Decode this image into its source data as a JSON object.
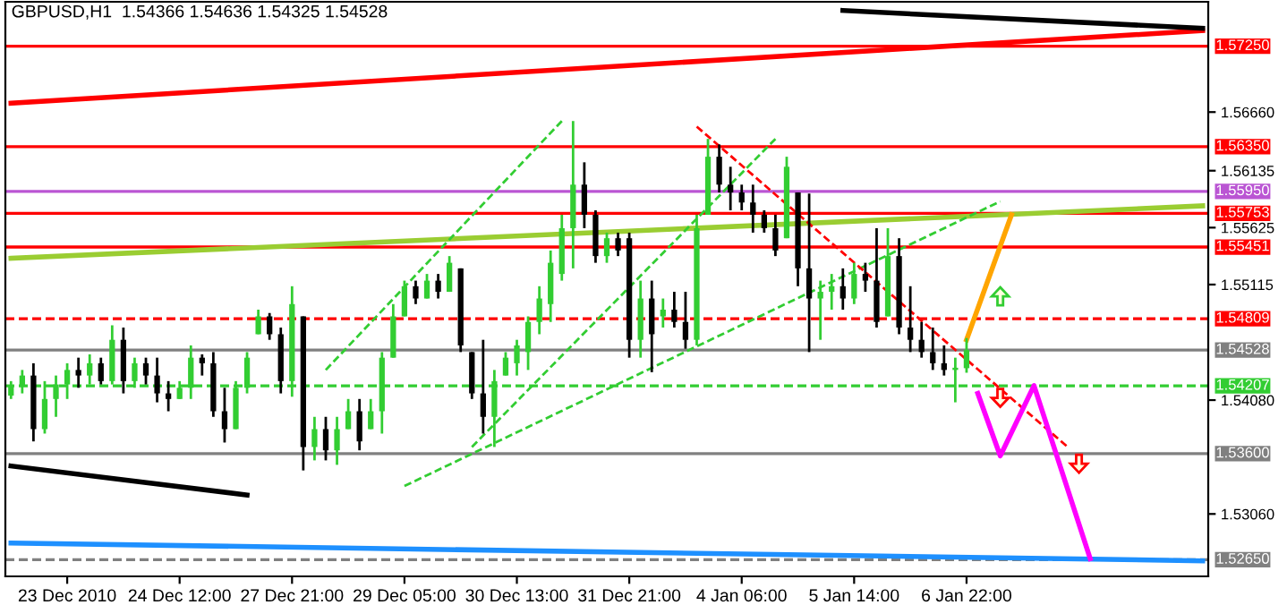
{
  "chart_data": {
    "type": "candlestick",
    "title": "GBPUSD,H1  1.54366 1.54636 1.54325 1.54528",
    "categories": [
      null,
      null,
      null,
      null,
      null,
      "23 Dec 2010",
      null,
      null,
      null,
      null,
      null,
      null,
      null,
      null,
      null,
      "24 Dec 12:00",
      null,
      null,
      null,
      null,
      null,
      null,
      null,
      null,
      null,
      "27 Dec 21:00",
      null,
      null,
      null,
      null,
      null,
      null,
      null,
      null,
      null,
      "29 Dec 05:00",
      null,
      null,
      null,
      null,
      null,
      null,
      null,
      null,
      null,
      "30 Dec 13:00",
      null,
      null,
      null,
      null,
      null,
      null,
      null,
      null,
      null,
      "31 Dec 21:00",
      null,
      null,
      null,
      null,
      null,
      null,
      null,
      null,
      null,
      "4 Jan 06:00",
      null,
      null,
      null,
      null,
      null,
      null,
      null,
      null,
      null,
      "5 Jan 14:00",
      null,
      null,
      null,
      null,
      null,
      null,
      null,
      null,
      null,
      "6 Jan 22:00",
      null,
      null,
      null,
      null,
      null,
      null,
      null,
      null,
      null,
      null,
      null,
      null,
      null,
      null,
      null,
      null,
      null,
      null,
      null,
      null,
      null
    ],
    "ohlc": [
      [
        1.5412,
        1.5425,
        1.5409,
        1.542
      ],
      [
        1.542,
        1.5435,
        1.5414,
        1.543
      ],
      [
        1.543,
        1.5441,
        1.5371,
        1.5382
      ],
      [
        1.5382,
        1.5425,
        1.5378,
        1.5409
      ],
      [
        1.5409,
        1.543,
        1.5393,
        1.5422
      ],
      [
        1.5422,
        1.5441,
        1.5409,
        1.5435
      ],
      [
        1.5435,
        1.5446,
        1.5419,
        1.543
      ],
      [
        1.543,
        1.5449,
        1.5422,
        1.5441
      ],
      [
        1.5441,
        1.5446,
        1.5422,
        1.5425
      ],
      [
        1.5425,
        1.5475,
        1.5422,
        1.5462
      ],
      [
        1.5462,
        1.5473,
        1.5414,
        1.5425
      ],
      [
        1.5425,
        1.5446,
        1.5419,
        1.5441
      ],
      [
        1.5441,
        1.5446,
        1.5422,
        1.543
      ],
      [
        1.543,
        1.5446,
        1.5406,
        1.5414
      ],
      [
        1.5414,
        1.5425,
        1.5398,
        1.5409
      ],
      [
        1.5409,
        1.5425,
        1.5409,
        1.5419
      ],
      [
        1.5419,
        1.5457,
        1.5409,
        1.5446
      ],
      [
        1.5446,
        1.5449,
        1.543,
        1.5441
      ],
      [
        1.5441,
        1.5451,
        1.5393,
        1.5398
      ],
      [
        1.5398,
        1.5419,
        1.537,
        1.5382
      ],
      [
        1.5382,
        1.5425,
        1.5382,
        1.5419
      ],
      [
        1.5419,
        1.5451,
        1.5414,
        1.5446
      ],
      [
        1.5467,
        1.5489,
        1.5467,
        1.5483
      ],
      [
        1.5483,
        1.5486,
        1.5462,
        1.5467
      ],
      [
        1.5467,
        1.5473,
        1.5414,
        1.5425
      ],
      [
        1.5425,
        1.551,
        1.5411,
        1.5494
      ],
      [
        1.5483,
        1.5483,
        1.5345,
        1.5366
      ],
      [
        1.5366,
        1.5393,
        1.5354,
        1.5382
      ],
      [
        1.5382,
        1.5393,
        1.5354,
        1.5363
      ],
      [
        1.5363,
        1.5393,
        1.535,
        1.5382
      ],
      [
        1.5382,
        1.5409,
        1.5382,
        1.5398
      ],
      [
        1.5398,
        1.5409,
        1.5363,
        1.5371
      ],
      [
        1.5382,
        1.5409,
        1.5382,
        1.5398
      ],
      [
        1.5398,
        1.5451,
        1.5378,
        1.5446
      ],
      [
        1.5446,
        1.5494,
        1.5446,
        1.5483
      ],
      [
        1.5483,
        1.5515,
        1.5483,
        1.551
      ],
      [
        1.551,
        1.5515,
        1.5494,
        1.5499
      ],
      [
        1.5499,
        1.5521,
        1.5499,
        1.5515
      ],
      [
        1.5515,
        1.5521,
        1.5499,
        1.5505
      ],
      [
        1.5505,
        1.5537,
        1.5505,
        1.5531
      ],
      [
        1.5526,
        1.5526,
        1.5451,
        1.5457
      ],
      [
        1.5451,
        1.5451,
        1.5409,
        1.5414
      ],
      [
        1.5414,
        1.5462,
        1.5378,
        1.5393
      ],
      [
        1.5393,
        1.5435,
        1.5366,
        1.5425
      ],
      [
        1.543,
        1.5451,
        1.543,
        1.5446
      ],
      [
        1.5441,
        1.5462,
        1.543,
        1.5457
      ],
      [
        1.5451,
        1.5483,
        1.5435,
        1.5478
      ],
      [
        1.5478,
        1.551,
        1.5467,
        1.5499
      ],
      [
        1.5494,
        1.5542,
        1.5478,
        1.5531
      ],
      [
        1.5521,
        1.5574,
        1.5515,
        1.5562
      ],
      [
        1.5562,
        1.5658,
        1.5526,
        1.5601
      ],
      [
        1.5601,
        1.5621,
        1.5562,
        1.5574
      ],
      [
        1.5574,
        1.5578,
        1.5531,
        1.5537
      ],
      [
        1.5537,
        1.5558,
        1.5531,
        1.5553
      ],
      [
        1.5553,
        1.5558,
        1.5537,
        1.5542
      ],
      [
        1.5553,
        1.5558,
        1.5446,
        1.5462
      ],
      [
        1.5462,
        1.5515,
        1.5446,
        1.5499
      ],
      [
        1.5499,
        1.5515,
        1.5433,
        1.5467
      ],
      [
        1.5483,
        1.5499,
        1.5473,
        1.5489
      ],
      [
        1.5489,
        1.5505,
        1.5473,
        1.5478
      ],
      [
        1.5478,
        1.5505,
        1.5454,
        1.5462
      ],
      [
        1.5462,
        1.5574,
        1.5457,
        1.5562
      ],
      [
        1.5574,
        1.5642,
        1.5574,
        1.5626
      ],
      [
        1.5626,
        1.5637,
        1.5594,
        1.5601
      ],
      [
        1.5601,
        1.5617,
        1.5578,
        1.5594
      ],
      [
        1.5594,
        1.5601,
        1.5578,
        1.5585
      ],
      [
        1.5585,
        1.5601,
        1.5558,
        1.5574
      ],
      [
        1.5574,
        1.5578,
        1.5558,
        1.5562
      ],
      [
        1.5562,
        1.5574,
        1.5537,
        1.5542
      ],
      [
        1.5553,
        1.5626,
        1.5553,
        1.5617
      ],
      [
        1.5594,
        1.5594,
        1.551,
        1.5526
      ],
      [
        1.5526,
        1.5593,
        1.5451,
        1.5499
      ],
      [
        1.5499,
        1.5515,
        1.5462,
        1.5505
      ],
      [
        1.5505,
        1.5521,
        1.5489,
        1.551
      ],
      [
        1.551,
        1.5526,
        1.5489,
        1.5499
      ],
      [
        1.5499,
        1.5531,
        1.5494,
        1.5521
      ],
      [
        1.5521,
        1.5531,
        1.5505,
        1.5515
      ],
      [
        1.5515,
        1.5562,
        1.5473,
        1.5478
      ],
      [
        1.5483,
        1.5562,
        1.5483,
        1.5537
      ],
      [
        1.5537,
        1.5553,
        1.5467,
        1.5473
      ],
      [
        1.5473,
        1.551,
        1.5451,
        1.5462
      ],
      [
        1.5462,
        1.5478,
        1.5446,
        1.5451
      ],
      [
        1.5451,
        1.5473,
        1.5435,
        1.5441
      ],
      [
        1.5441,
        1.5457,
        1.543,
        1.5435
      ],
      [
        1.5435,
        1.5446,
        1.5406,
        1.5437
      ],
      [
        1.54366,
        1.54636,
        1.54325,
        1.54528
      ],
      null,
      null,
      null,
      null,
      null,
      null,
      null,
      null,
      null,
      null,
      null,
      null,
      null,
      null,
      null,
      null,
      null,
      null,
      null,
      null,
      null
    ],
    "colors": [
      "#32cd32",
      "#32cd32",
      "#000000",
      "#32cd32",
      "#32cd32",
      "#32cd32",
      "#000000",
      "#32cd32",
      "#000000",
      "#32cd32",
      "#000000",
      "#32cd32",
      "#000000",
      "#000000",
      "#000000",
      "#32cd32",
      "#32cd32",
      "#000000",
      "#000000",
      "#000000",
      "#32cd32",
      "#32cd32",
      "#32cd32",
      "#000000",
      "#000000",
      "#32cd32",
      "#000000",
      "#32cd32",
      "#000000",
      "#32cd32",
      "#32cd32",
      "#000000",
      "#32cd32",
      "#32cd32",
      "#32cd32",
      "#32cd32",
      "#000000",
      "#32cd32",
      "#000000",
      "#32cd32",
      "#000000",
      "#000000",
      "#000000",
      "#32cd32",
      "#32cd32",
      "#32cd32",
      "#32cd32",
      "#32cd32",
      "#32cd32",
      "#32cd32",
      "#32cd32",
      "#000000",
      "#000000",
      "#32cd32",
      "#000000",
      "#000000",
      "#32cd32",
      "#000000",
      "#32cd32",
      "#000000",
      "#000000",
      "#32cd32",
      "#32cd32",
      "#000000",
      "#000000",
      "#000000",
      "#000000",
      "#000000",
      "#000000",
      "#32cd32",
      "#000000",
      "#000000",
      "#32cd32",
      "#32cd32",
      "#000000",
      "#32cd32",
      "#000000",
      "#000000",
      "#32cd32",
      "#000000",
      "#000000",
      "#000000",
      "#000000",
      "#000000",
      "#32cd32",
      "#32cd32",
      null,
      null,
      null,
      null,
      null,
      null,
      null,
      null,
      null,
      null,
      null,
      null,
      null,
      null,
      null,
      null,
      null,
      null,
      null,
      null,
      null
    ],
    "series": [
      {
        "type": "line",
        "color": "#ff0000",
        "values": [
          1.5674,
          null,
          null,
          null,
          null,
          null,
          null,
          null,
          null,
          null,
          null,
          null,
          null,
          null,
          null,
          null,
          null,
          null,
          null,
          null,
          null,
          null,
          null,
          null,
          null,
          null,
          null,
          null,
          null,
          null,
          null,
          null,
          null,
          null,
          null,
          null,
          null,
          null,
          null,
          null,
          null,
          null,
          null,
          null,
          null,
          null,
          null,
          null,
          null,
          null,
          null,
          null,
          null,
          null,
          null,
          null,
          null,
          null,
          null,
          null,
          null,
          null,
          null,
          null,
          null,
          null,
          null,
          null,
          null,
          null,
          null,
          null,
          null,
          null,
          null,
          null,
          null,
          null,
          null,
          null,
          null,
          null,
          null,
          null,
          null,
          null,
          null,
          null,
          null,
          null,
          null,
          null,
          null,
          null,
          null,
          null,
          null,
          null,
          null,
          null,
          null,
          null,
          null,
          null,
          null,
          null,
          1.5739
        ]
      },
      {
        "type": "line",
        "color": "#000000",
        "values": [
          null,
          null,
          null,
          null,
          null,
          null,
          null,
          null,
          null,
          null,
          null,
          null,
          null,
          null,
          null,
          null,
          null,
          null,
          null,
          null,
          null,
          null,
          null,
          null,
          null,
          null,
          null,
          null,
          null,
          null,
          null,
          null,
          null,
          null,
          null,
          null,
          null,
          null,
          null,
          null,
          null,
          null,
          null,
          null,
          null,
          null,
          null,
          null,
          null,
          null,
          null,
          null,
          null,
          null,
          null,
          null,
          null,
          null,
          null,
          null,
          null,
          null,
          null,
          null,
          null,
          null,
          null,
          null,
          null,
          null,
          null,
          null,
          null,
          null,
          1.5757,
          null,
          null,
          null,
          null,
          null,
          null,
          null,
          null,
          null,
          null,
          null,
          null,
          null,
          null,
          null,
          null,
          null,
          null,
          null,
          null,
          null,
          null,
          null,
          null,
          null,
          null,
          null,
          null,
          null,
          null,
          null,
          1.5741
        ]
      },
      {
        "type": "line",
        "color": "#000000",
        "values": [
          1.5349,
          null,
          null,
          null,
          null,
          null,
          null,
          null,
          null,
          null,
          null,
          null,
          null,
          null,
          null,
          null,
          null,
          null,
          null,
          null,
          null,
          1.5323,
          null,
          null,
          null,
          null,
          null,
          null,
          null,
          null,
          null,
          null,
          null,
          null,
          null,
          null,
          null,
          null,
          null,
          null,
          null,
          null,
          null,
          null,
          null,
          null,
          null,
          null,
          null,
          null,
          null,
          null,
          null,
          null,
          null,
          null,
          null,
          null,
          null,
          null,
          null,
          null,
          null,
          null,
          null,
          null,
          null,
          null,
          null,
          null,
          null,
          null,
          null,
          null,
          null,
          null,
          null,
          null,
          null,
          null,
          null,
          null,
          null,
          null,
          null,
          null,
          null,
          null,
          null,
          null,
          null,
          null,
          null,
          null,
          null,
          null,
          null,
          null,
          null,
          null,
          null,
          null,
          null,
          null,
          null,
          null,
          null
        ]
      },
      {
        "type": "line",
        "color": "#9acd32",
        "values": [
          1.5535,
          null,
          null,
          null,
          null,
          null,
          null,
          null,
          null,
          null,
          null,
          null,
          null,
          null,
          null,
          null,
          null,
          null,
          null,
          null,
          null,
          null,
          null,
          null,
          null,
          null,
          null,
          null,
          null,
          null,
          null,
          null,
          null,
          null,
          null,
          null,
          null,
          null,
          null,
          null,
          null,
          null,
          null,
          null,
          null,
          null,
          null,
          null,
          null,
          null,
          null,
          null,
          null,
          null,
          null,
          null,
          null,
          null,
          null,
          null,
          null,
          null,
          null,
          null,
          null,
          null,
          null,
          null,
          null,
          null,
          null,
          null,
          null,
          null,
          null,
          null,
          null,
          null,
          null,
          null,
          null,
          null,
          null,
          null,
          null,
          null,
          null,
          null,
          null,
          null,
          null,
          null,
          null,
          null,
          null,
          null,
          null,
          null,
          null,
          null,
          null,
          null,
          null,
          null,
          null,
          null,
          1.5582
        ]
      },
      {
        "type": "line",
        "color": "#32cd32",
        "line_style": "dashed",
        "values": [
          null,
          null,
          null,
          null,
          null,
          null,
          null,
          null,
          null,
          null,
          null,
          null,
          null,
          null,
          null,
          null,
          null,
          null,
          null,
          null,
          null,
          null,
          null,
          null,
          null,
          null,
          null,
          null,
          1.5435,
          null,
          null,
          null,
          null,
          null,
          null,
          null,
          null,
          null,
          null,
          null,
          null,
          null,
          null,
          null,
          null,
          null,
          null,
          null,
          null,
          1.5658,
          null,
          null,
          null,
          null,
          null,
          null,
          null,
          null,
          null,
          null,
          null,
          null,
          null,
          null,
          null,
          null,
          null,
          null,
          null,
          null,
          null,
          null,
          null,
          null,
          null,
          null,
          null,
          null,
          null,
          null,
          null,
          null,
          null,
          null,
          null,
          null,
          null,
          null,
          null,
          null,
          null,
          null,
          null,
          null,
          null,
          null,
          null,
          null,
          null,
          null,
          null,
          null,
          null,
          null,
          null,
          null,
          null
        ]
      },
      {
        "type": "line",
        "color": "#32cd32",
        "line_style": "dashed",
        "values": [
          null,
          null,
          null,
          null,
          null,
          null,
          null,
          null,
          null,
          null,
          null,
          null,
          null,
          null,
          null,
          null,
          null,
          null,
          null,
          null,
          null,
          null,
          null,
          null,
          null,
          null,
          null,
          null,
          null,
          null,
          null,
          null,
          null,
          null,
          null,
          1.5331,
          null,
          null,
          null,
          null,
          null,
          null,
          null,
          null,
          null,
          null,
          null,
          null,
          null,
          null,
          null,
          null,
          null,
          null,
          null,
          null,
          null,
          null,
          null,
          null,
          null,
          null,
          null,
          null,
          null,
          null,
          null,
          null,
          null,
          null,
          null,
          null,
          null,
          null,
          null,
          null,
          null,
          null,
          null,
          null,
          null,
          null,
          null,
          null,
          null,
          null,
          null,
          null,
          1.5586,
          null,
          null,
          null,
          null,
          null,
          null,
          null,
          null,
          null,
          null,
          null,
          null,
          null,
          null,
          null,
          null,
          null,
          null
        ]
      },
      {
        "type": "line",
        "color": "#32cd32",
        "line_style": "dashed",
        "values": [
          null,
          null,
          null,
          null,
          null,
          null,
          null,
          null,
          null,
          null,
          null,
          null,
          null,
          null,
          null,
          null,
          null,
          null,
          null,
          null,
          null,
          null,
          null,
          null,
          null,
          null,
          null,
          null,
          null,
          null,
          null,
          null,
          null,
          null,
          null,
          null,
          null,
          null,
          null,
          null,
          null,
          1.5366,
          null,
          null,
          null,
          null,
          null,
          null,
          null,
          null,
          null,
          null,
          null,
          null,
          null,
          null,
          null,
          null,
          null,
          null,
          null,
          null,
          null,
          null,
          null,
          null,
          null,
          null,
          1.5642,
          null,
          null,
          null,
          null,
          null,
          null,
          null,
          null,
          null,
          null,
          null,
          null,
          null,
          null,
          null,
          null,
          null,
          null,
          null,
          null,
          null,
          null,
          null,
          null,
          null,
          null,
          null,
          null,
          null,
          null,
          null,
          null,
          null,
          null,
          null,
          null,
          null,
          null
        ]
      },
      {
        "type": "line",
        "color": "#ff0000",
        "line_style": "dashed",
        "values": [
          null,
          null,
          null,
          null,
          null,
          null,
          null,
          null,
          null,
          null,
          null,
          null,
          null,
          null,
          null,
          null,
          null,
          null,
          null,
          null,
          null,
          null,
          null,
          null,
          null,
          null,
          null,
          null,
          null,
          null,
          null,
          null,
          null,
          null,
          null,
          null,
          null,
          null,
          null,
          null,
          null,
          null,
          null,
          null,
          null,
          null,
          null,
          null,
          null,
          null,
          null,
          null,
          null,
          null,
          null,
          null,
          null,
          null,
          null,
          null,
          null,
          1.5653,
          null,
          null,
          null,
          null,
          null,
          null,
          null,
          null,
          null,
          null,
          null,
          null,
          null,
          null,
          null,
          null,
          null,
          null,
          null,
          null,
          null,
          null,
          null,
          null,
          null,
          null,
          null,
          null,
          null,
          null,
          null,
          null,
          1.5366,
          null,
          null,
          null,
          null,
          null,
          null,
          null,
          null,
          null,
          null,
          null,
          null
        ]
      },
      {
        "type": "line",
        "color": "#1e90ff",
        "values": [
          1.528,
          null,
          null,
          null,
          null,
          null,
          null,
          null,
          null,
          null,
          null,
          null,
          null,
          null,
          null,
          null,
          null,
          null,
          null,
          null,
          null,
          null,
          null,
          null,
          null,
          null,
          null,
          null,
          null,
          null,
          null,
          null,
          null,
          null,
          null,
          null,
          null,
          null,
          null,
          null,
          null,
          null,
          null,
          null,
          null,
          null,
          null,
          null,
          null,
          null,
          null,
          null,
          null,
          null,
          null,
          null,
          null,
          null,
          null,
          null,
          null,
          null,
          null,
          null,
          null,
          null,
          null,
          null,
          null,
          null,
          null,
          null,
          null,
          null,
          null,
          null,
          null,
          null,
          null,
          null,
          null,
          null,
          null,
          null,
          null,
          null,
          null,
          null,
          null,
          null,
          null,
          null,
          null,
          null,
          null,
          null,
          null,
          null,
          null,
          null,
          null,
          null,
          null,
          null,
          null,
          null,
          1.5264
        ]
      },
      {
        "type": "line",
        "color": "#ffa500",
        "values": [
          null,
          null,
          null,
          null,
          null,
          null,
          null,
          null,
          null,
          null,
          null,
          null,
          null,
          null,
          null,
          null,
          null,
          null,
          null,
          null,
          null,
          null,
          null,
          null,
          null,
          null,
          null,
          null,
          null,
          null,
          null,
          null,
          null,
          null,
          null,
          null,
          null,
          null,
          null,
          null,
          null,
          null,
          null,
          null,
          null,
          null,
          null,
          null,
          null,
          null,
          null,
          null,
          null,
          null,
          null,
          null,
          null,
          null,
          null,
          null,
          null,
          null,
          null,
          null,
          null,
          null,
          null,
          null,
          null,
          null,
          null,
          null,
          null,
          null,
          null,
          null,
          null,
          null,
          null,
          null,
          null,
          null,
          null,
          null,
          null,
          1.5462,
          null,
          null,
          null,
          1.5574,
          null,
          null,
          null,
          null,
          null,
          null,
          null,
          null,
          null,
          null,
          null,
          null,
          null,
          null,
          null,
          null,
          null
        ]
      },
      {
        "type": "line",
        "color": "#ff00ff",
        "values": [
          null,
          null,
          null,
          null,
          null,
          null,
          null,
          null,
          null,
          null,
          null,
          null,
          null,
          null,
          null,
          null,
          null,
          null,
          null,
          null,
          null,
          null,
          null,
          null,
          null,
          null,
          null,
          null,
          null,
          null,
          null,
          null,
          null,
          null,
          null,
          null,
          null,
          null,
          null,
          null,
          null,
          null,
          null,
          null,
          null,
          null,
          null,
          null,
          null,
          null,
          null,
          null,
          null,
          null,
          null,
          null,
          null,
          null,
          null,
          null,
          null,
          null,
          null,
          null,
          null,
          null,
          null,
          null,
          null,
          null,
          null,
          null,
          null,
          null,
          null,
          null,
          null,
          null,
          null,
          null,
          null,
          null,
          null,
          null,
          null,
          null,
          1.5414,
          null,
          1.5358,
          null,
          null,
          1.5421,
          null,
          null,
          null,
          null,
          1.5266,
          null,
          null,
          null,
          null,
          null,
          null,
          null,
          null,
          null,
          null
        ]
      }
    ],
    "ref_lines": [
      {
        "axis": "y",
        "value": 1.5725,
        "label": "1.57250",
        "color": "#ff0000"
      },
      {
        "axis": "y",
        "value": 1.5635,
        "label": "1.56350",
        "color": "#ff0000"
      },
      {
        "axis": "y",
        "value": 1.5595,
        "label": "1.55950",
        "color": "#ba55d3"
      },
      {
        "axis": "y",
        "value": 1.55753,
        "label": "1.55753",
        "color": "#ff0000"
      },
      {
        "axis": "y",
        "value": 1.55451,
        "label": "1.55451",
        "color": "#ff0000"
      },
      {
        "axis": "y",
        "value": 1.54809,
        "label": "1.54809",
        "color": "#ff0000",
        "line_style": "dashed"
      },
      {
        "axis": "y",
        "value": 1.54528,
        "label": "1.54528",
        "color": "#808080"
      },
      {
        "axis": "y",
        "value": 1.54207,
        "label": "1.54207",
        "color": "#32cd32",
        "line_style": "dashed"
      },
      {
        "axis": "y",
        "value": 1.536,
        "label": "1.53600",
        "color": "#808080"
      },
      {
        "axis": "y",
        "value": 1.5265,
        "label": "1.52650",
        "color": "#808080",
        "line_style": "dashed"
      }
    ],
    "ylim": [
      1.52501,
      1.57648
    ],
    "yticks": [
      {
        "value": 1.5666,
        "label": "1.56660"
      },
      {
        "value": 1.56135,
        "label": "1.56135"
      },
      {
        "value": 1.55625,
        "label": "1.55625"
      },
      {
        "value": 1.55115,
        "label": "1.55115"
      },
      {
        "value": 1.5408,
        "label": "1.54080"
      },
      {
        "value": 1.5306,
        "label": "1.53060"
      }
    ],
    "grid": false,
    "legend": false
  }
}
